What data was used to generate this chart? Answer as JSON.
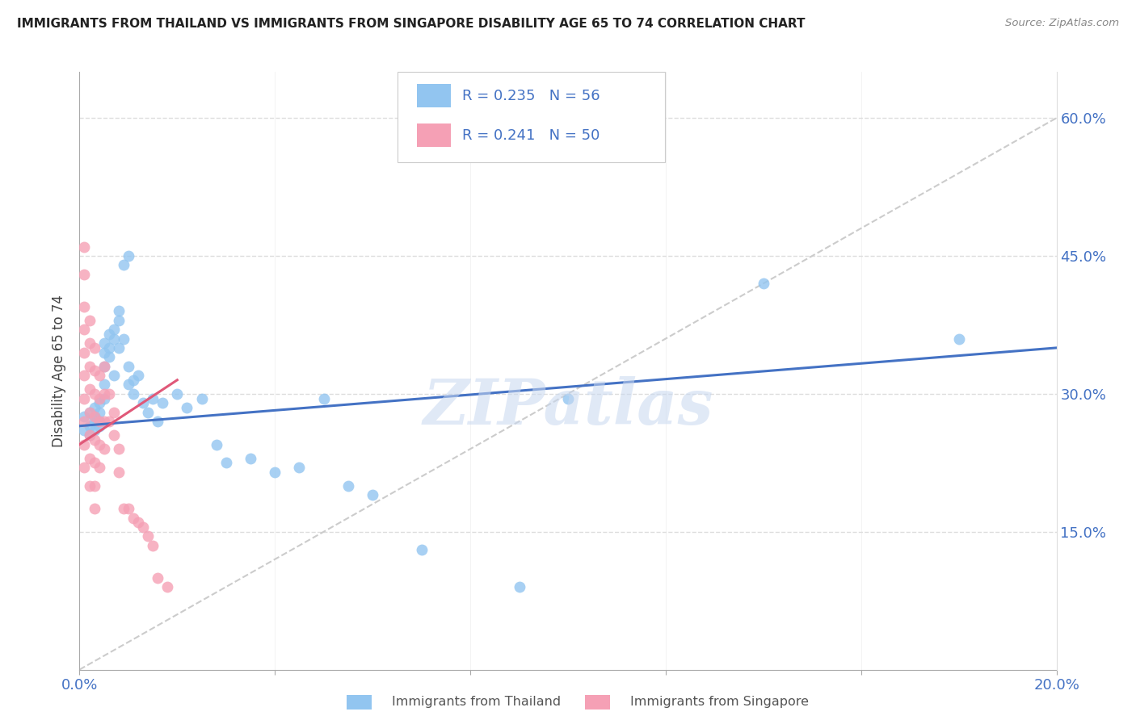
{
  "title": "IMMIGRANTS FROM THAILAND VS IMMIGRANTS FROM SINGAPORE DISABILITY AGE 65 TO 74 CORRELATION CHART",
  "source": "Source: ZipAtlas.com",
  "ylabel": "Disability Age 65 to 74",
  "r_thailand": 0.235,
  "n_thailand": 56,
  "r_singapore": 0.241,
  "n_singapore": 50,
  "color_thailand": "#92C5F0",
  "color_singapore": "#F5A0B5",
  "color_blue_text": "#4472C4",
  "ytick_labels": [
    "15.0%",
    "30.0%",
    "45.0%",
    "60.0%"
  ],
  "ytick_values": [
    0.15,
    0.3,
    0.45,
    0.6
  ],
  "xlim": [
    0.0,
    0.2
  ],
  "ylim": [
    0.0,
    0.65
  ],
  "thailand_x": [
    0.001,
    0.001,
    0.002,
    0.002,
    0.002,
    0.003,
    0.003,
    0.003,
    0.003,
    0.004,
    0.004,
    0.004,
    0.004,
    0.005,
    0.005,
    0.005,
    0.005,
    0.005,
    0.006,
    0.006,
    0.006,
    0.007,
    0.007,
    0.007,
    0.008,
    0.008,
    0.008,
    0.009,
    0.009,
    0.01,
    0.01,
    0.01,
    0.011,
    0.011,
    0.012,
    0.013,
    0.014,
    0.015,
    0.016,
    0.017,
    0.02,
    0.022,
    0.025,
    0.028,
    0.03,
    0.035,
    0.04,
    0.045,
    0.05,
    0.055,
    0.06,
    0.07,
    0.09,
    0.1,
    0.14,
    0.18
  ],
  "thailand_y": [
    0.26,
    0.275,
    0.265,
    0.28,
    0.255,
    0.27,
    0.26,
    0.285,
    0.275,
    0.28,
    0.265,
    0.29,
    0.27,
    0.33,
    0.355,
    0.345,
    0.31,
    0.295,
    0.35,
    0.34,
    0.365,
    0.37,
    0.36,
    0.32,
    0.39,
    0.38,
    0.35,
    0.36,
    0.44,
    0.45,
    0.33,
    0.31,
    0.315,
    0.3,
    0.32,
    0.29,
    0.28,
    0.295,
    0.27,
    0.29,
    0.3,
    0.285,
    0.295,
    0.245,
    0.225,
    0.23,
    0.215,
    0.22,
    0.295,
    0.2,
    0.19,
    0.13,
    0.09,
    0.295,
    0.42,
    0.36
  ],
  "singapore_x": [
    0.001,
    0.001,
    0.001,
    0.001,
    0.001,
    0.001,
    0.001,
    0.001,
    0.001,
    0.001,
    0.002,
    0.002,
    0.002,
    0.002,
    0.002,
    0.002,
    0.002,
    0.002,
    0.003,
    0.003,
    0.003,
    0.003,
    0.003,
    0.003,
    0.003,
    0.003,
    0.004,
    0.004,
    0.004,
    0.004,
    0.004,
    0.005,
    0.005,
    0.005,
    0.005,
    0.006,
    0.006,
    0.007,
    0.007,
    0.008,
    0.008,
    0.009,
    0.01,
    0.011,
    0.012,
    0.013,
    0.014,
    0.015,
    0.016,
    0.018
  ],
  "singapore_y": [
    0.46,
    0.43,
    0.395,
    0.37,
    0.345,
    0.32,
    0.295,
    0.27,
    0.245,
    0.22,
    0.38,
    0.355,
    0.33,
    0.305,
    0.28,
    0.255,
    0.23,
    0.2,
    0.35,
    0.325,
    0.3,
    0.275,
    0.25,
    0.225,
    0.2,
    0.175,
    0.32,
    0.295,
    0.27,
    0.245,
    0.22,
    0.33,
    0.3,
    0.27,
    0.24,
    0.3,
    0.27,
    0.28,
    0.255,
    0.24,
    0.215,
    0.175,
    0.175,
    0.165,
    0.16,
    0.155,
    0.145,
    0.135,
    0.1,
    0.09
  ],
  "watermark": "ZIPatlas",
  "legend_label_thailand": "Immigrants from Thailand",
  "legend_label_singapore": "Immigrants from Singapore",
  "ref_line_x": [
    0.0,
    0.2
  ],
  "ref_line_y": [
    0.0,
    0.6
  ]
}
